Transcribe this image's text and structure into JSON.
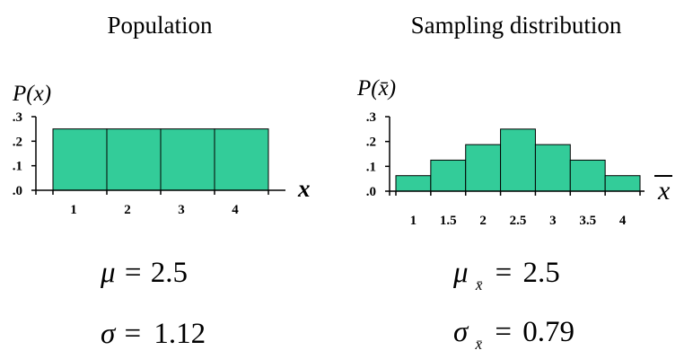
{
  "colors": {
    "bar_fill": "#33CC99",
    "bar_stroke": "#000000",
    "axis": "#000000"
  },
  "chart_data": [
    {
      "type": "bar",
      "title": "Population",
      "ylabel": "P(x)",
      "xlabel": "x",
      "categories": [
        "1",
        "2",
        "3",
        "4"
      ],
      "values": [
        0.25,
        0.25,
        0.25,
        0.25
      ],
      "yticks": [
        ".0",
        ".1",
        ".2",
        ".3"
      ],
      "ytick_values": [
        0,
        0.1,
        0.2,
        0.3
      ],
      "ylim": [
        0,
        0.3
      ],
      "grid": false,
      "stats": {
        "mean_symbol": "μ",
        "mean_value": "2.5",
        "sd_symbol": "σ",
        "sd_value": "1.12"
      }
    },
    {
      "type": "bar",
      "title": "Sampling distribution",
      "ylabel": "P(x̄)",
      "xlabel": "x̄",
      "categories": [
        "1",
        "1.5",
        "2",
        "2.5",
        "3",
        "3.5",
        "4"
      ],
      "values": [
        0.0625,
        0.125,
        0.1875,
        0.25,
        0.1875,
        0.125,
        0.0625
      ],
      "yticks": [
        ".0",
        ".1",
        ".2",
        ".3"
      ],
      "ytick_values": [
        0,
        0.1,
        0.2,
        0.3
      ],
      "ylim": [
        0,
        0.3
      ],
      "grid": false,
      "stats": {
        "mean_symbol": "μ",
        "mean_sub": "x̄",
        "mean_value": "2.5",
        "sd_symbol": "σ",
        "sd_sub": "x̄",
        "sd_value": "0.79"
      }
    }
  ]
}
